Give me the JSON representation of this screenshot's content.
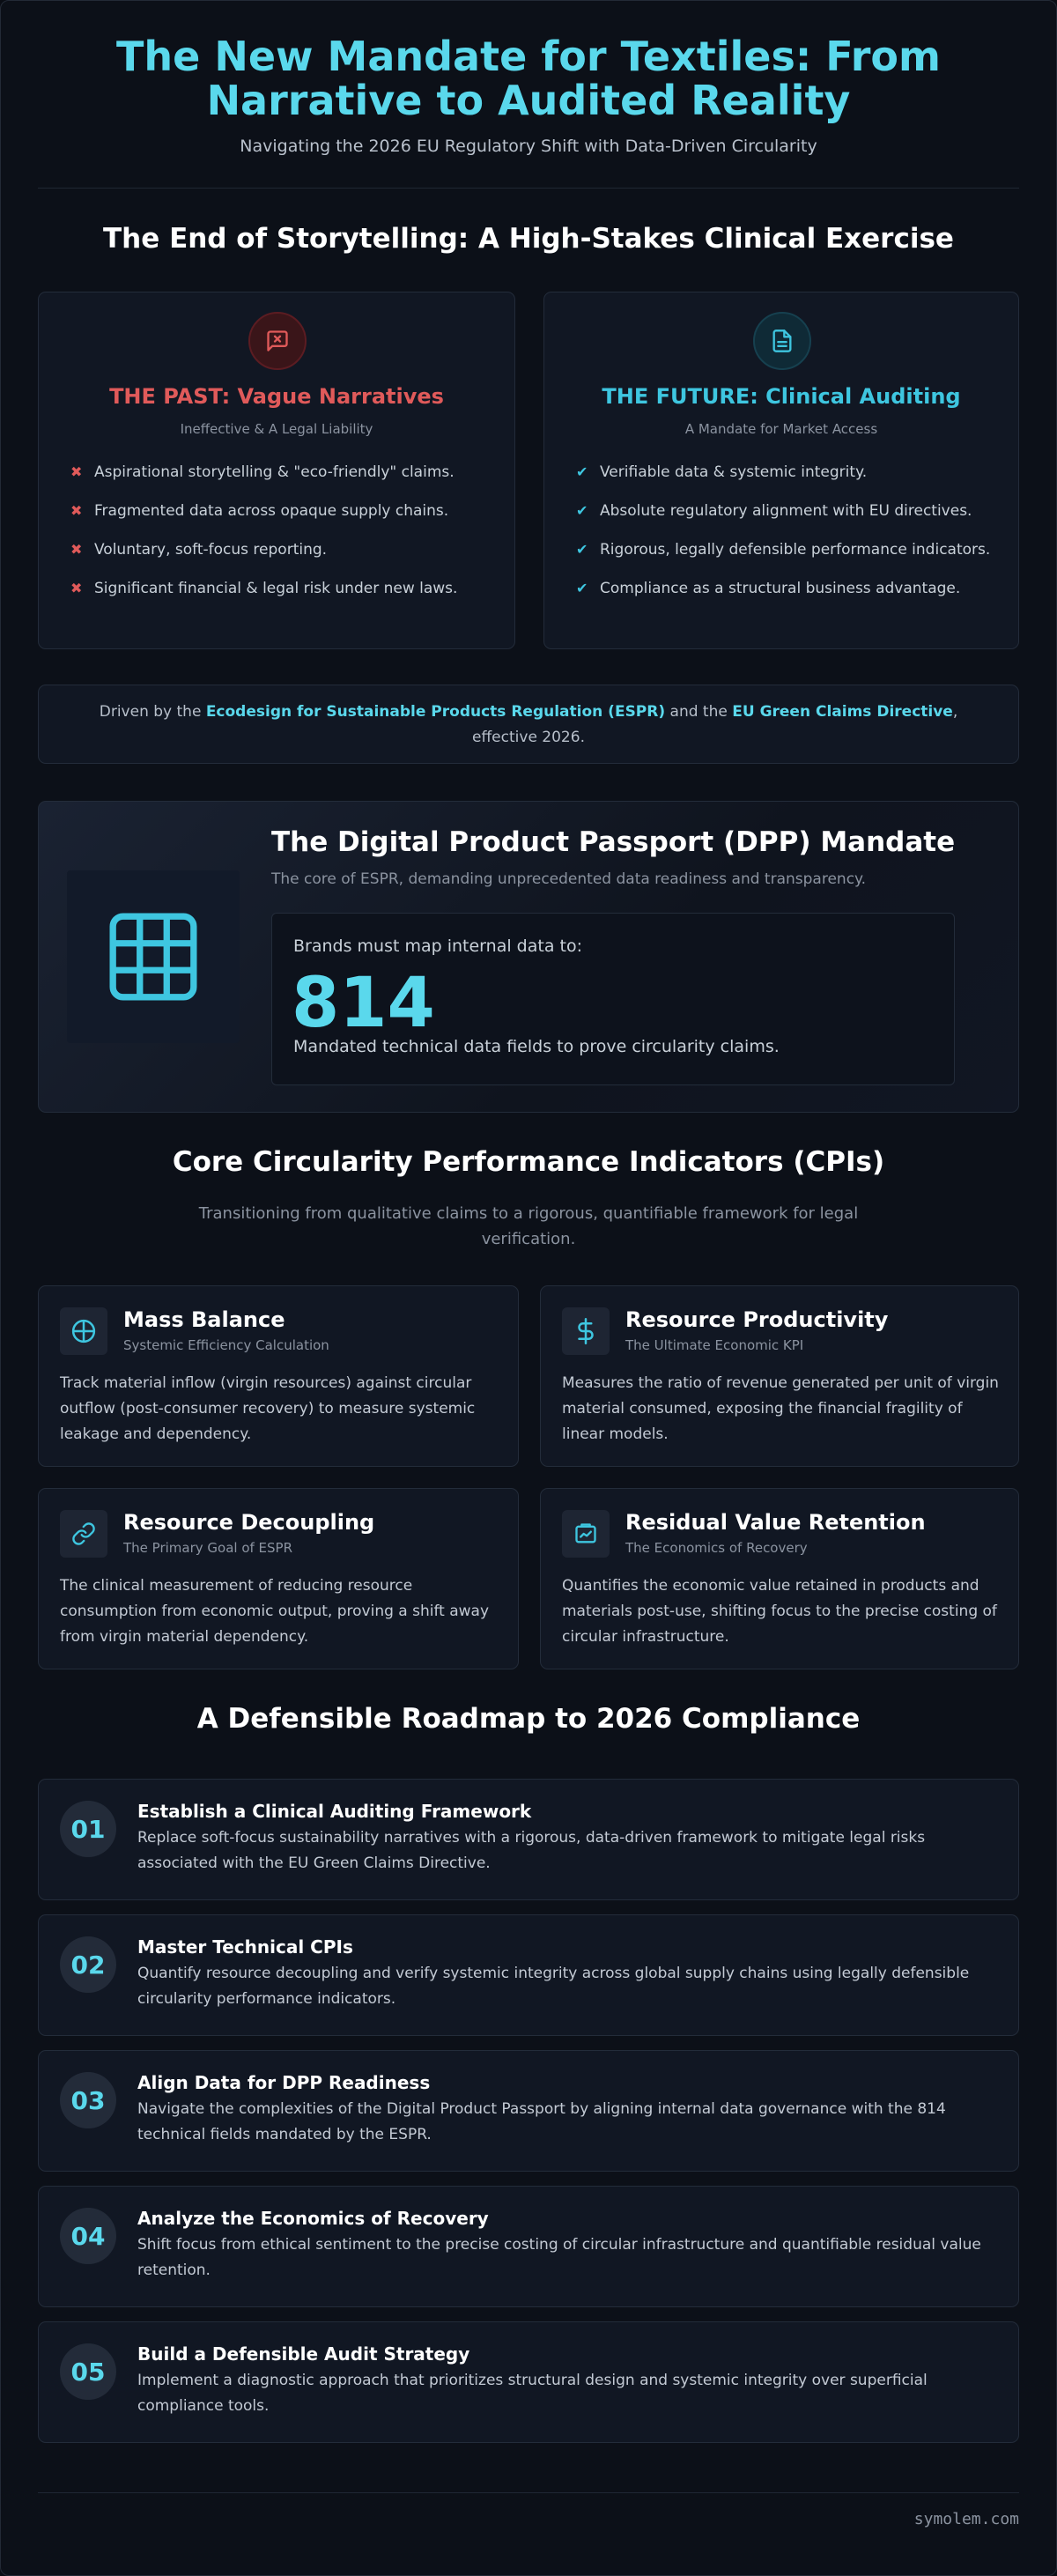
{
  "header": {
    "title": "The New Mandate for Textiles: From Narrative to Audited Reality",
    "subtitle": "Navigating the 2026 EU Regulatory Shift with Data-Driven Circularity"
  },
  "section1": {
    "title": "The End of Storytelling: A High-Stakes Clinical Exercise",
    "past": {
      "icon": "message-x-icon",
      "title": "THE PAST: Vague Narratives",
      "subtitle": "Ineffective & A Legal Liability",
      "items": [
        "Aspirational storytelling & \"eco-friendly\" claims.",
        "Fragmented data across opaque supply chains.",
        "Voluntary, soft-focus reporting.",
        "Significant financial & legal risk under new laws."
      ],
      "color": "#e05a5a"
    },
    "future": {
      "icon": "document-icon",
      "title": "THE FUTURE: Clinical Auditing",
      "subtitle": "A Mandate for Market Access",
      "items": [
        "Verifiable data & systemic integrity.",
        "Absolute regulatory alignment with EU directives.",
        "Rigorous, legally defensible performance indicators.",
        "Compliance as a structural business advantage."
      ],
      "color": "#3ec6e0"
    },
    "driven": {
      "prefix": "Driven by the ",
      "espr": "Ecodesign for Sustainable Products Regulation (ESPR)",
      "middle": " and the ",
      "gcd": "EU Green Claims Directive",
      "suffix": ", effective 2026."
    }
  },
  "dpp": {
    "icon": "grid-icon",
    "title": "The Digital Product Passport (DPP) Mandate",
    "subtitle": "The core of ESPR, demanding unprecedented data readiness and transparency.",
    "lead": "Brands must map internal data to:",
    "number": "814",
    "desc": "Mandated technical data fields to prove circularity claims."
  },
  "cpi": {
    "title": "Core Circularity Performance Indicators (CPIs)",
    "intro": "Transitioning from qualitative claims to a rigorous, quantifiable framework for legal verification.",
    "cards": [
      {
        "icon": "target-icon",
        "title": "Mass Balance",
        "subtitle": "Systemic Efficiency Calculation",
        "desc": "Track material inflow (virgin resources) against circular outflow (post-consumer recovery) to measure systemic leakage and dependency."
      },
      {
        "icon": "dollar-icon",
        "title": "Resource Productivity",
        "subtitle": "The Ultimate Economic KPI",
        "desc": "Measures the ratio of revenue generated per unit of virgin material consumed, exposing the financial fragility of linear models."
      },
      {
        "icon": "link-icon",
        "title": "Resource Decoupling",
        "subtitle": "The Primary Goal of ESPR",
        "desc": "The clinical measurement of reducing resource consumption from economic output, proving a shift away from virgin material dependency."
      },
      {
        "icon": "value-icon",
        "title": "Residual Value Retention",
        "subtitle": "The Economics of Recovery",
        "desc": "Quantifies the economic value retained in products and materials post-use, shifting focus to the precise costing of circular infrastructure."
      }
    ]
  },
  "roadmap": {
    "title": "A Defensible Roadmap to 2026 Compliance",
    "steps": [
      {
        "num": "01",
        "title": "Establish a Clinical Auditing Framework",
        "desc": "Replace soft-focus sustainability narratives with a rigorous, data-driven framework to mitigate legal risks associated with the EU Green Claims Directive."
      },
      {
        "num": "02",
        "title": "Master Technical CPIs",
        "desc": "Quantify resource decoupling and verify systemic integrity across global supply chains using legally defensible circularity performance indicators."
      },
      {
        "num": "03",
        "title": "Align Data for DPP Readiness",
        "desc": "Navigate the complexities of the Digital Product Passport by aligning internal data governance with the 814 technical fields mandated by the ESPR."
      },
      {
        "num": "04",
        "title": "Analyze the Economics of Recovery",
        "desc": "Shift focus from ethical sentiment to the precise costing of circular infrastructure and quantifiable residual value retention."
      },
      {
        "num": "05",
        "title": "Build a Defensible Audit Strategy",
        "desc": "Implement a diagnostic approach that prioritizes structural design and systemic integrity over superficial compliance tools."
      }
    ]
  },
  "footer": {
    "site": "symolem.com"
  },
  "colors": {
    "accent": "#5ad8ec",
    "danger": "#e05a5a",
    "background": "#0c1018"
  }
}
